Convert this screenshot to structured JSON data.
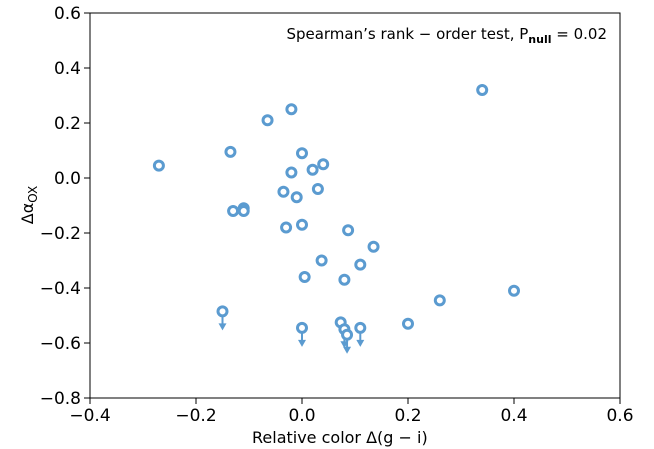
{
  "chart_data": {
    "type": "scatter",
    "xlabel": "Relative color Δ(g − i)",
    "ylabel": {
      "text": "Δα",
      "subscript": "OX"
    },
    "annotation": {
      "text": "Spearman’s rank − order test, P",
      "subscript": "null",
      "rest": " = 0.02"
    },
    "xlim": [
      -0.4,
      0.6
    ],
    "ylim": [
      -0.8,
      0.6
    ],
    "xticks": [
      {
        "value": -0.4,
        "label": "−0.4"
      },
      {
        "value": -0.2,
        "label": "−0.2"
      },
      {
        "value": 0,
        "label": "0.0"
      },
      0.2,
      0.4,
      0.6
    ],
    "yticks": [
      {
        "value": -0.8,
        "label": "−0.8"
      },
      {
        "value": -0.6,
        "label": "−0.6"
      },
      {
        "value": -0.4,
        "label": "−0.4"
      },
      {
        "value": -0.2,
        "label": "−0.2"
      },
      {
        "value": 0,
        "label": "0.0"
      },
      0.2,
      0.4,
      0.6
    ],
    "series": [
      {
        "color": "#5b9bd0",
        "upper_limit": false,
        "x": [
          -0.27,
          -0.02,
          -0.065,
          0.34,
          -0.135,
          0.0,
          0.04,
          0.02,
          -0.02,
          -0.035,
          0.03,
          -0.01,
          -0.13,
          -0.11,
          -0.11,
          -0.03,
          0.0,
          0.087,
          0.135,
          0.037,
          0.11,
          0.005,
          0.08,
          0.26,
          0.4,
          0.2,
          0.073
        ],
        "values": [
          0.045,
          0.25,
          0.21,
          0.32,
          0.095,
          0.09,
          0.05,
          0.03,
          0.02,
          -0.05,
          -0.04,
          -0.07,
          -0.12,
          -0.11,
          -0.12,
          -0.18,
          -0.17,
          -0.19,
          -0.25,
          -0.3,
          -0.315,
          -0.36,
          -0.37,
          -0.445,
          -0.41,
          -0.53,
          -0.525
        ]
      },
      {
        "color": "#5b9bd0",
        "upper_limit": true,
        "x": [
          -0.15,
          0.0,
          0.08,
          0.085,
          0.11
        ],
        "values": [
          -0.485,
          -0.545,
          -0.55,
          -0.57,
          -0.545
        ]
      }
    ]
  }
}
